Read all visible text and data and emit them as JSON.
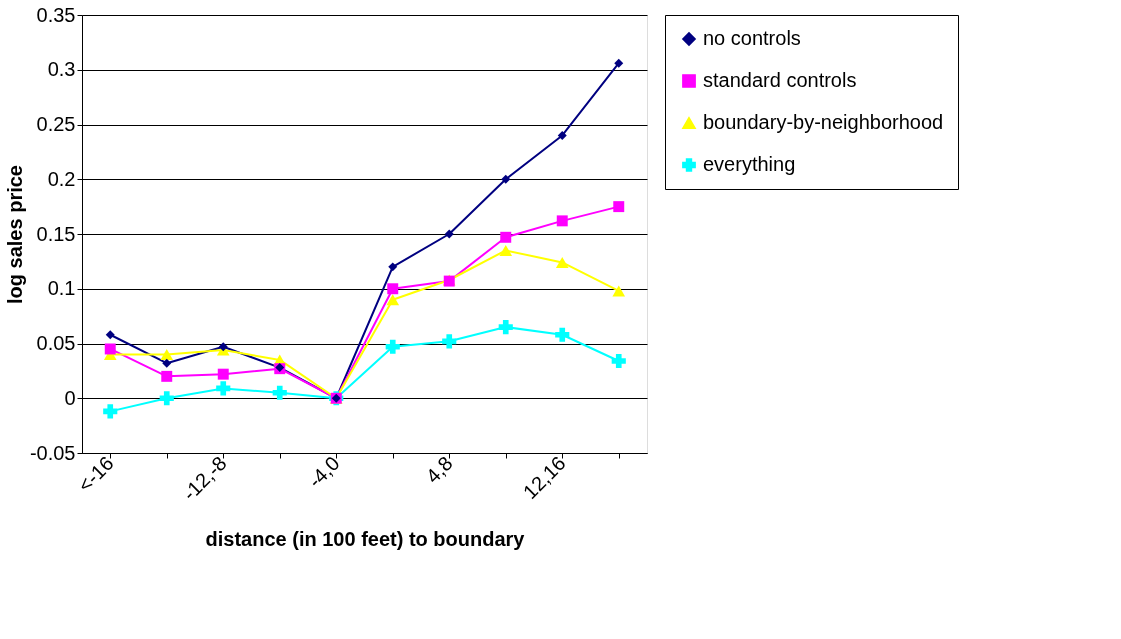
{
  "chart_data": {
    "type": "line",
    "xlabel": "distance (in 100 feet) to boundary",
    "ylabel": "log sales price",
    "categories": [
      "<-16",
      null,
      "-12,-8",
      null,
      "-4,0",
      null,
      "4,8",
      null,
      "12,16",
      null
    ],
    "series": [
      {
        "name": "no controls",
        "color": "#000080",
        "marker": "diamond",
        "values": [
          0.058,
          0.032,
          0.047,
          0.028,
          0,
          0.12,
          0.15,
          0.2,
          0.24,
          0.306
        ]
      },
      {
        "name": "standard controls",
        "color": "#ff00ff",
        "marker": "square",
        "values": [
          0.045,
          0.02,
          0.022,
          0.027,
          0,
          0.1,
          0.107,
          0.147,
          0.162,
          0.175
        ]
      },
      {
        "name": "boundary-by-neighborhood",
        "color": "#ffff00",
        "marker": "triangle",
        "values": [
          0.04,
          0.04,
          0.044,
          0.035,
          0,
          0.09,
          0.108,
          0.135,
          0.124,
          0.098
        ]
      },
      {
        "name": "everything",
        "color": "#00ffff",
        "marker": "cross",
        "values": [
          -0.012,
          0,
          0.009,
          0.005,
          0,
          0.047,
          0.052,
          0.065,
          0.058,
          0.034
        ]
      }
    ],
    "ylim": [
      -0.05,
      0.35
    ],
    "yticks": [
      -0.05,
      0,
      0.05,
      0.1,
      0.15,
      0.2,
      0.25,
      0.3,
      0.35
    ],
    "grid": "y",
    "legend": "right"
  }
}
